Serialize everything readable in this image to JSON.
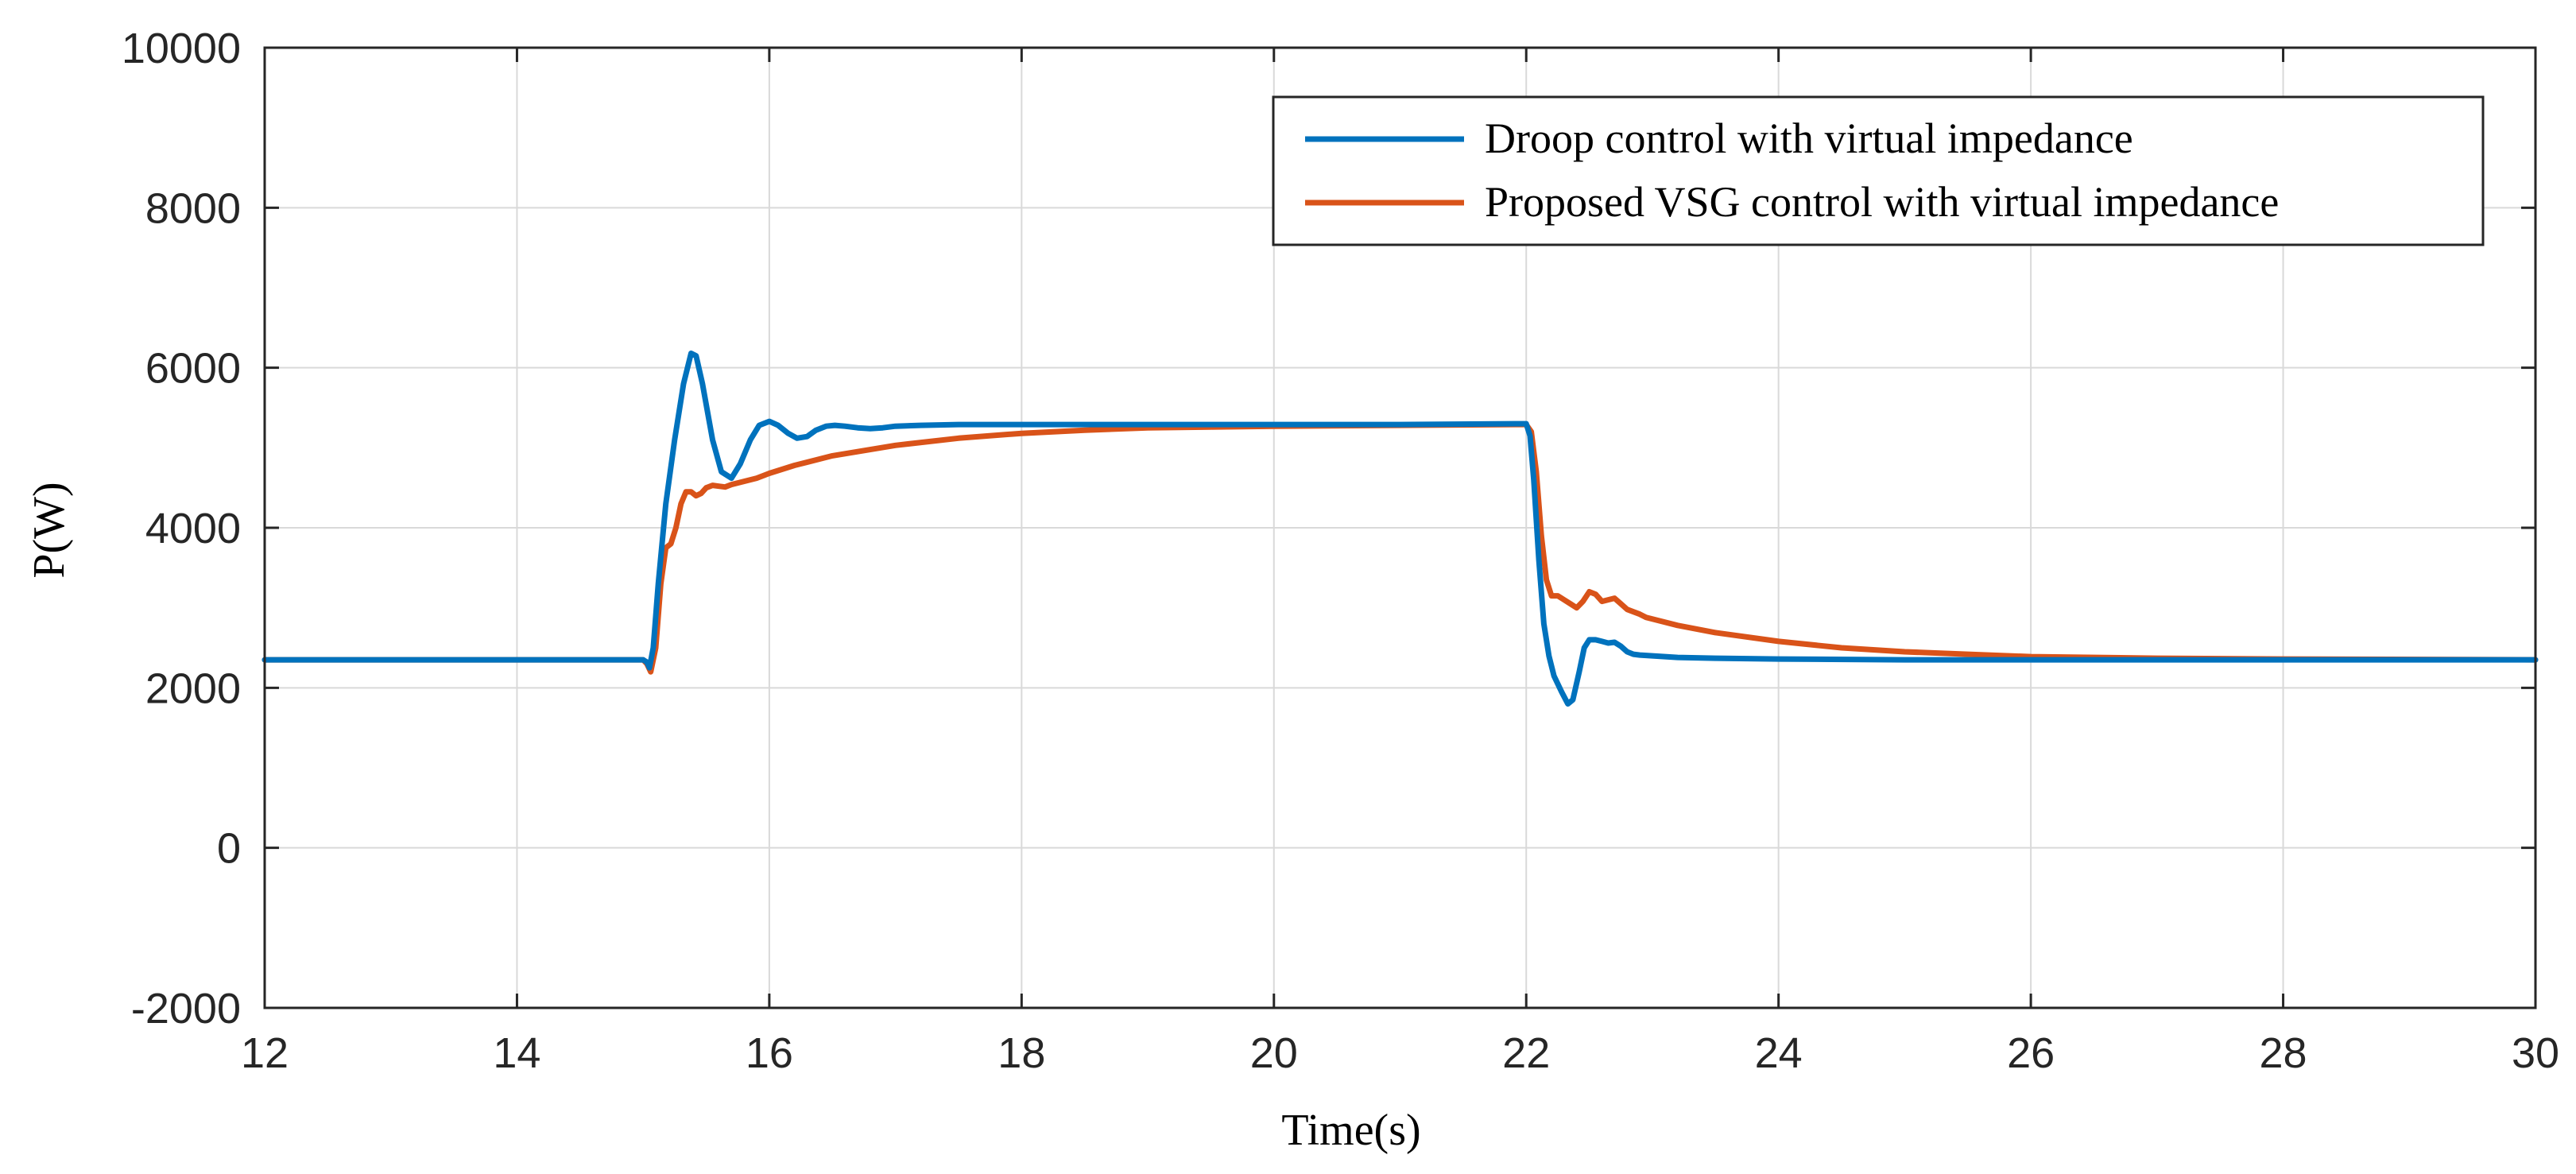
{
  "chart_data": {
    "type": "line",
    "title": "",
    "xlabel": "Time(s)",
    "ylabel": "P(W)",
    "xlim": [
      12,
      30
    ],
    "ylim": [
      -2000,
      10000
    ],
    "xticks": [
      12,
      14,
      16,
      18,
      20,
      22,
      24,
      26,
      28,
      30
    ],
    "yticks": [
      -2000,
      0,
      2000,
      4000,
      6000,
      8000,
      10000
    ],
    "xtick_labels": [
      "12",
      "14",
      "16",
      "18",
      "20",
      "22",
      "24",
      "26",
      "28",
      "30"
    ],
    "ytick_labels": [
      "-2000",
      "0",
      "2000",
      "4000",
      "6000",
      "8000",
      "10000"
    ],
    "grid": true,
    "legend_position": "top-right",
    "series": [
      {
        "name": "Droop control with virtual impedance",
        "color": "#0072BD",
        "x": [
          12,
          15.0,
          15.03,
          15.05,
          15.08,
          15.12,
          15.18,
          15.25,
          15.32,
          15.38,
          15.42,
          15.47,
          15.55,
          15.62,
          15.7,
          15.77,
          15.85,
          15.92,
          16.0,
          16.07,
          16.15,
          16.22,
          16.3,
          16.37,
          16.45,
          16.52,
          16.6,
          16.7,
          16.8,
          16.9,
          17.0,
          17.2,
          17.5,
          18.0,
          19.0,
          20.0,
          21.0,
          21.95,
          22.0,
          22.03,
          22.06,
          22.1,
          22.14,
          22.18,
          22.22,
          22.28,
          22.33,
          22.37,
          22.42,
          22.46,
          22.5,
          22.55,
          22.6,
          22.65,
          22.7,
          22.75,
          22.8,
          22.85,
          22.9,
          23.0,
          23.2,
          23.5,
          24.0,
          25.0,
          26.0,
          28.0,
          30.0
        ],
        "values": [
          2350,
          2350,
          2320,
          2250,
          2500,
          3300,
          4300,
          5100,
          5800,
          6180,
          6150,
          5800,
          5100,
          4700,
          4620,
          4800,
          5100,
          5280,
          5330,
          5280,
          5180,
          5120,
          5140,
          5220,
          5270,
          5280,
          5270,
          5250,
          5240,
          5250,
          5270,
          5280,
          5290,
          5290,
          5290,
          5290,
          5290,
          5300,
          5300,
          5150,
          4600,
          3600,
          2800,
          2400,
          2150,
          1950,
          1800,
          1850,
          2200,
          2500,
          2600,
          2600,
          2580,
          2560,
          2570,
          2520,
          2450,
          2420,
          2410,
          2400,
          2380,
          2370,
          2360,
          2350,
          2350,
          2350,
          2350
        ]
      },
      {
        "name": "Proposed VSG control with virtual impedance",
        "color": "#D95319",
        "x": [
          12,
          15.0,
          15.03,
          15.06,
          15.1,
          15.14,
          15.18,
          15.22,
          15.26,
          15.3,
          15.34,
          15.38,
          15.42,
          15.46,
          15.5,
          15.55,
          15.6,
          15.65,
          15.7,
          15.75,
          15.8,
          15.9,
          16.0,
          16.2,
          16.5,
          17.0,
          17.5,
          18.0,
          18.5,
          19.0,
          19.5,
          20.0,
          21.0,
          21.95,
          22.0,
          22.04,
          22.08,
          22.12,
          22.16,
          22.2,
          22.25,
          22.3,
          22.35,
          22.4,
          22.45,
          22.5,
          22.55,
          22.6,
          22.65,
          22.7,
          22.75,
          22.8,
          22.85,
          22.9,
          22.95,
          23.0,
          23.2,
          23.5,
          24.0,
          24.5,
          25.0,
          25.5,
          26.0,
          27.0,
          28.0,
          30.0
        ],
        "values": [
          2350,
          2350,
          2300,
          2200,
          2500,
          3300,
          3750,
          3800,
          4000,
          4300,
          4450,
          4450,
          4400,
          4430,
          4500,
          4530,
          4520,
          4510,
          4540,
          4560,
          4580,
          4620,
          4680,
          4780,
          4900,
          5030,
          5120,
          5180,
          5220,
          5250,
          5260,
          5270,
          5280,
          5290,
          5290,
          5200,
          4700,
          3900,
          3350,
          3150,
          3150,
          3100,
          3050,
          3000,
          3080,
          3200,
          3170,
          3080,
          3100,
          3120,
          3050,
          2980,
          2950,
          2920,
          2880,
          2860,
          2780,
          2690,
          2580,
          2500,
          2450,
          2420,
          2390,
          2370,
          2360,
          2350
        ]
      }
    ]
  }
}
